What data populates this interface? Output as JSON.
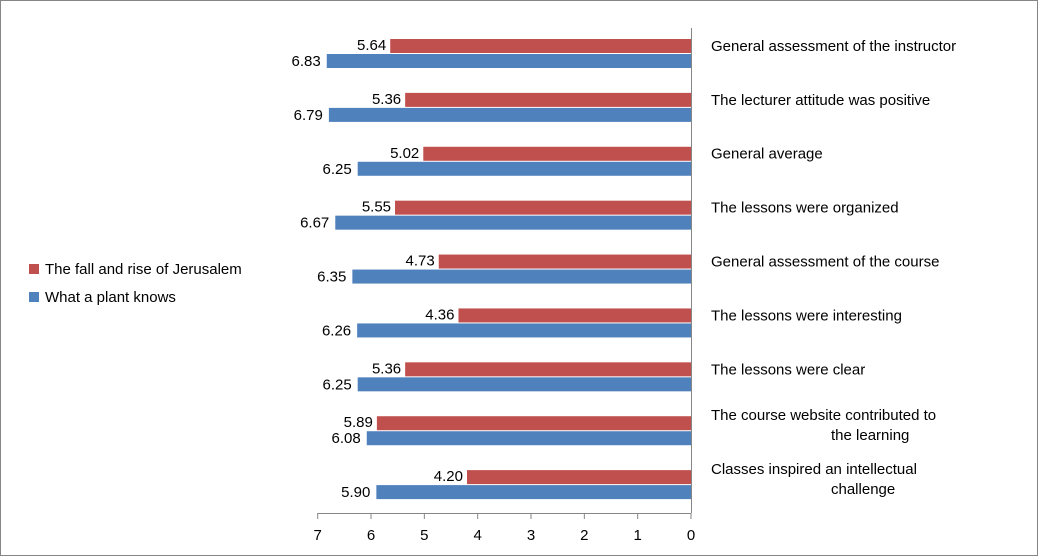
{
  "chart_data": {
    "type": "bar",
    "orientation": "horizontal",
    "x_reversed": true,
    "xlim": [
      0,
      7
    ],
    "x_ticks": [
      "7",
      "6",
      "5",
      "4",
      "3",
      "2",
      "1",
      "0"
    ],
    "x_tick_values": [
      7,
      6,
      5,
      4,
      3,
      2,
      1,
      0
    ],
    "grid": false,
    "legend_position": "left",
    "categories": [
      "General assessment of the instructor",
      "The lecturer attitude was positive",
      "General average",
      "The lessons were organized",
      "General assessment of the course",
      "The lessons were interesting",
      "The lessons were clear",
      "The course website contributed to the learning",
      "Classes inspired an intellectual challenge"
    ],
    "series": [
      {
        "name": "The fall and rise of Jerusalem",
        "color": "#c0504d",
        "values": [
          5.64,
          5.36,
          5.02,
          5.55,
          4.73,
          4.36,
          5.36,
          5.89,
          4.2
        ],
        "labels": [
          "5.64",
          "5.36",
          "5.02",
          "5.55",
          "4.73",
          "4.36",
          "5.36",
          "5.89",
          "4.20"
        ]
      },
      {
        "name": "What a plant knows",
        "color": "#4f81bd",
        "values": [
          6.83,
          6.79,
          6.25,
          6.67,
          6.35,
          6.26,
          6.25,
          6.08,
          5.9
        ],
        "labels": [
          "6.83",
          "6.79",
          "6.25",
          "6.67",
          "6.35",
          "6.26",
          "6.25",
          "6.08",
          "5.90"
        ]
      }
    ]
  }
}
